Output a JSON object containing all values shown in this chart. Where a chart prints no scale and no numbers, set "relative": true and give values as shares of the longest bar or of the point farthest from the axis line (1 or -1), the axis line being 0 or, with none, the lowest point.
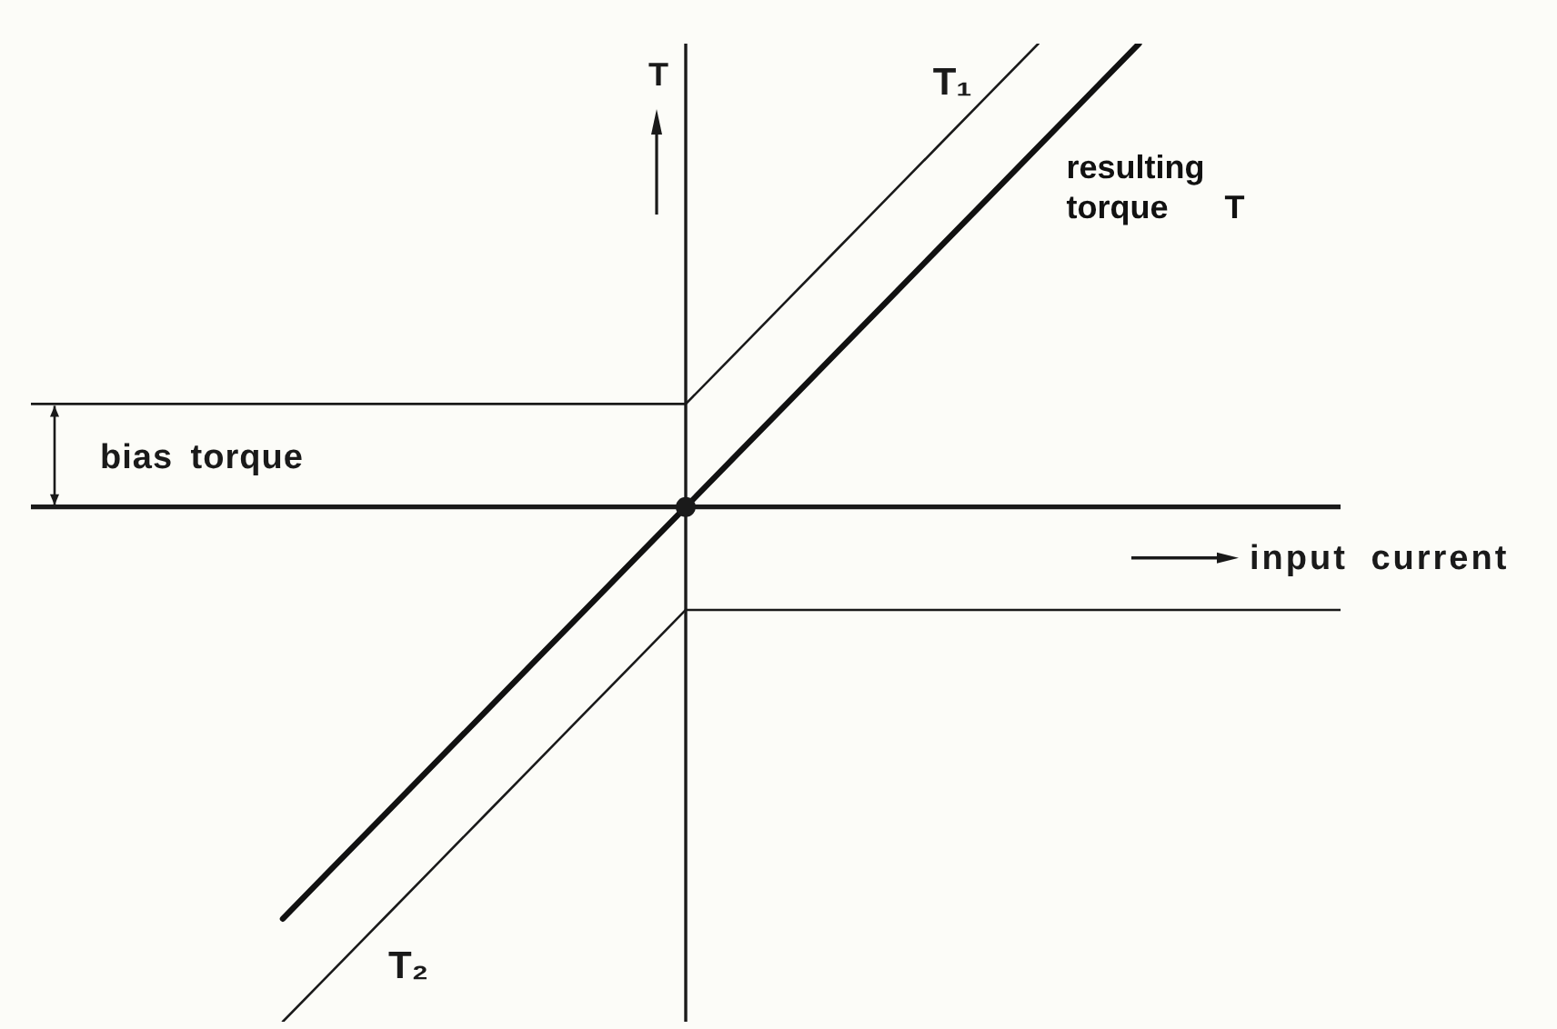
{
  "chart_data": {
    "type": "line",
    "xlabel": "input current",
    "ylabel": "T",
    "relative": true,
    "tick_labels": false,
    "annotations": [
      "bias torque"
    ],
    "categories": [
      null,
      null,
      null,
      null,
      null,
      null,
      null,
      null,
      null,
      null,
      null,
      null,
      null,
      null,
      null,
      null,
      null,
      null,
      null,
      null,
      null,
      null,
      null,
      null,
      null,
      null,
      null
    ],
    "series": [
      {
        "name": "T₁",
        "color": "#1a1a1a",
        "values": [
          0.2,
          0.2,
          0.2,
          0.2,
          0.2,
          0.2,
          0.2,
          0.2,
          0.2,
          0.2,
          0.2,
          0.2,
          0.2,
          0.2,
          0.3,
          0.4,
          0.5,
          0.6,
          0.7,
          0.8,
          0.9,
          null,
          null,
          null,
          null,
          null,
          null
        ]
      },
      {
        "name": "resulting torque T",
        "color": "#111111",
        "values": [
          null,
          null,
          null,
          null,
          null,
          -0.8,
          -0.7,
          -0.6,
          -0.5,
          -0.4,
          -0.3,
          -0.2,
          -0.1,
          0,
          0.1,
          0.2,
          0.3,
          0.4,
          0.5,
          0.6,
          0.7,
          0.8,
          0.9,
          null,
          null,
          null,
          null
        ]
      },
      {
        "name": "T₂",
        "color": "#1a1a1a",
        "values": [
          null,
          null,
          null,
          null,
          null,
          -1,
          -0.9,
          -0.8,
          -0.7,
          -0.6,
          -0.5,
          -0.4,
          -0.3,
          -0.2,
          -0.2,
          -0.2,
          -0.2,
          -0.2,
          -0.2,
          -0.2,
          -0.2,
          -0.2,
          -0.2,
          -0.2,
          -0.2,
          -0.2,
          -0.2
        ]
      }
    ]
  }
}
